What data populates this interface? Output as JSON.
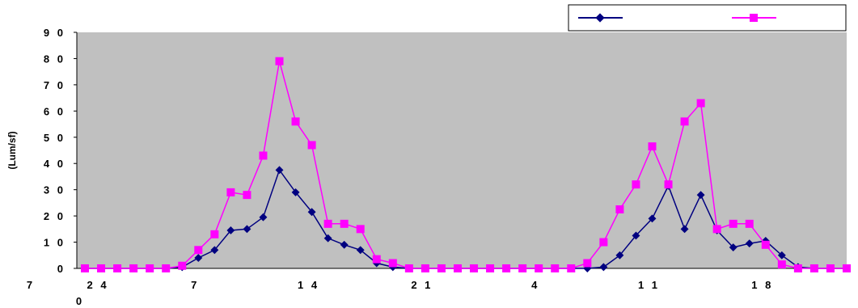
{
  "chart_data": {
    "type": "line",
    "ylabel": "(Lum/sf)",
    "ylim": [
      0,
      90
    ],
    "yticks": [
      "0",
      "10",
      "20",
      "30",
      "40",
      "50",
      "60",
      "70",
      "80",
      "90"
    ],
    "x_tick_labels": [
      {
        "index": 0,
        "text": "7"
      },
      {
        "index": 1,
        "text": "24"
      },
      {
        "index": 7,
        "text": "7"
      },
      {
        "index": 14,
        "text": "14"
      },
      {
        "index": 21,
        "text": "21"
      },
      {
        "index": 28,
        "text": "4"
      },
      {
        "index": 35,
        "text": "11"
      },
      {
        "index": 42,
        "text": "18"
      }
    ],
    "x_secondary_label": {
      "index": 0,
      "text": "0"
    },
    "grid": false,
    "plot_background": "#c0c0c0",
    "legend": {
      "position": "top-right",
      "entries": [
        "",
        ""
      ]
    },
    "series": [
      {
        "color": "#000080",
        "marker": "diamond",
        "values": [
          0,
          0,
          0,
          0,
          0,
          0,
          0.5,
          4,
          7,
          14.5,
          15,
          19.5,
          37.5,
          29,
          21.5,
          11.5,
          9,
          7,
          2,
          0.5,
          0,
          0,
          0,
          0,
          0,
          0,
          0,
          0,
          0,
          0,
          0,
          0,
          0.5,
          5,
          12.5,
          19,
          31.5,
          15,
          28,
          14.5,
          8,
          9.5,
          10.5,
          5,
          0.5,
          0,
          0,
          0
        ]
      },
      {
        "color": "#ff00ff",
        "marker": "square",
        "values": [
          0,
          0,
          0,
          0,
          0,
          0,
          1,
          7,
          13,
          29,
          28,
          43,
          79,
          56,
          47,
          17,
          17,
          15,
          3.5,
          2,
          0,
          0,
          0,
          0,
          0,
          0,
          0,
          0,
          0,
          0,
          0,
          2,
          10,
          22.5,
          32,
          46.5,
          32,
          56,
          63,
          15,
          17,
          17,
          9,
          1.5,
          0,
          0,
          0,
          0
        ]
      }
    ]
  }
}
